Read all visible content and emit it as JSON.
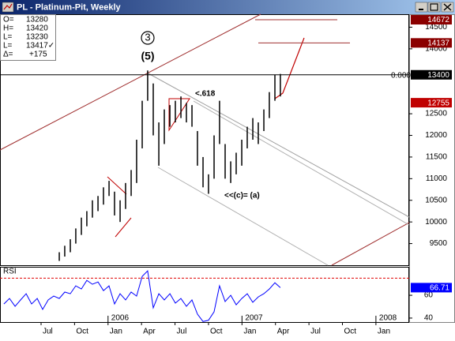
{
  "window": {
    "title": "PL - Platinum-Pit, Weekly"
  },
  "quote": [
    {
      "label": "O=",
      "value": "13280"
    },
    {
      "label": "H=",
      "value": "13420"
    },
    {
      "label": "L=",
      "value": "13230"
    },
    {
      "label": "L=",
      "value": "13417✓"
    },
    {
      "label": "Δ=",
      "value": "+175"
    }
  ],
  "chart_data": [
    {
      "type": "hilo",
      "color": "#000000",
      "x": [
        1.63,
        2.12,
        2.62,
        3.11,
        3.61,
        4.1,
        4.6,
        5.1,
        5.59,
        6.09,
        6.58,
        7.08,
        7.57,
        8.07,
        8.56,
        9.06,
        9.55,
        10.05,
        10.55,
        11.04,
        11.54,
        12.03,
        12.53,
        13.02,
        13.52,
        14.01,
        14.51,
        15.0,
        15.5,
        15.99,
        16.49,
        16.99,
        17.48,
        17.98,
        18.47,
        18.97,
        19.46,
        19.96,
        20.45,
        20.95,
        21.44
      ],
      "high": [
        9300,
        9450,
        9600,
        9850,
        10100,
        10250,
        10500,
        10600,
        10800,
        10950,
        10700,
        10500,
        10900,
        11200,
        11900,
        12800,
        13500,
        13200,
        12300,
        12600,
        12700,
        12800,
        12900,
        12750,
        12700,
        12100,
        11500,
        11100,
        12000,
        12800,
        11800,
        11400,
        11600,
        11900,
        12200,
        12400,
        12300,
        12600,
        13000,
        13400,
        13420
      ],
      "low": [
        9100,
        9200,
        9300,
        9500,
        9700,
        9900,
        10100,
        10250,
        10400,
        10600,
        10150,
        10000,
        10300,
        10600,
        10900,
        11700,
        12800,
        12000,
        11300,
        11800,
        12200,
        12300,
        12400,
        12300,
        12200,
        11300,
        10800,
        10650,
        11000,
        11800,
        11000,
        10900,
        11100,
        11300,
        11700,
        11900,
        11800,
        12100,
        12400,
        12800,
        12900
      ],
      "xlim": [
        -3.68,
        32.98
      ],
      "ylim": [
        9000,
        14800
      ],
      "yticks": [
        9500,
        10000,
        10500,
        11000,
        11500,
        12000,
        12500,
        14000,
        14500
      ],
      "levels": [
        {
          "value": 14672,
          "color": "#8b0000"
        },
        {
          "value": 14137,
          "color": "#8b0000"
        },
        {
          "value": 13400,
          "color": "#000000"
        },
        {
          "value": 12755,
          "color": "#c00000"
        }
      ],
      "annotations": [
        "3",
        "(5)",
        "<.618",
        "<<(c)= (a)",
        "0.000"
      ]
    },
    {
      "type": "line",
      "title": "RSI",
      "color": "#0000ff",
      "x": [
        -3.33,
        -2.83,
        -2.33,
        -1.84,
        -1.34,
        -0.85,
        -0.35,
        0.14,
        0.64,
        1.13,
        1.63,
        2.12,
        2.62,
        3.11,
        3.61,
        4.1,
        4.6,
        5.1,
        5.59,
        6.09,
        6.58,
        7.08,
        7.57,
        8.07,
        8.56,
        9.06,
        9.55,
        10.05,
        10.55,
        11.04,
        11.54,
        12.03,
        12.53,
        13.02,
        13.52,
        14.01,
        14.51,
        15.0,
        15.5,
        15.99,
        16.49,
        16.99,
        17.48,
        17.98,
        18.47,
        18.97,
        19.46,
        19.96,
        20.45,
        20.95,
        21.44
      ],
      "values": [
        52.4,
        57.2,
        50.3,
        55.9,
        61.4,
        52.4,
        57.2,
        47.6,
        55.9,
        59.3,
        57.2,
        62.8,
        61.4,
        68.3,
        65.5,
        73.1,
        69.7,
        71.7,
        64.1,
        68.3,
        52.4,
        61.4,
        55.9,
        62.8,
        59.3,
        76.6,
        81.4,
        49.0,
        61.4,
        55.9,
        61.4,
        53.1,
        57.2,
        50.3,
        55.9,
        43.4,
        37.0,
        38.0,
        45.5,
        68.3,
        54.5,
        60.0,
        51.7,
        57.2,
        61.4,
        53.8,
        58.6,
        61.4,
        65.5,
        71.0,
        66.71
      ],
      "ref_line": 75,
      "xlim": [
        -3.68,
        32.98
      ],
      "ylim": [
        36.5,
        85
      ],
      "yticks": [
        40,
        60
      ],
      "xticks": [
        {
          "value": 0,
          "label": "Jul"
        },
        {
          "value": 3,
          "label": "Oct"
        },
        {
          "value": 6,
          "label": "Jan"
        },
        {
          "value": 9,
          "label": "Apr"
        },
        {
          "value": 12,
          "label": "Jul"
        },
        {
          "value": 15,
          "label": "Oct"
        },
        {
          "value": 18,
          "label": "Jan"
        },
        {
          "value": 21,
          "label": "Apr"
        },
        {
          "value": 24,
          "label": "Jul"
        },
        {
          "value": 27,
          "label": "Oct"
        },
        {
          "value": 30,
          "label": "Jan"
        }
      ],
      "year_ticks": [
        {
          "value": 6,
          "label": "2006"
        },
        {
          "value": 18,
          "label": "2007"
        },
        {
          "value": 30,
          "label": "2008"
        }
      ]
    }
  ]
}
